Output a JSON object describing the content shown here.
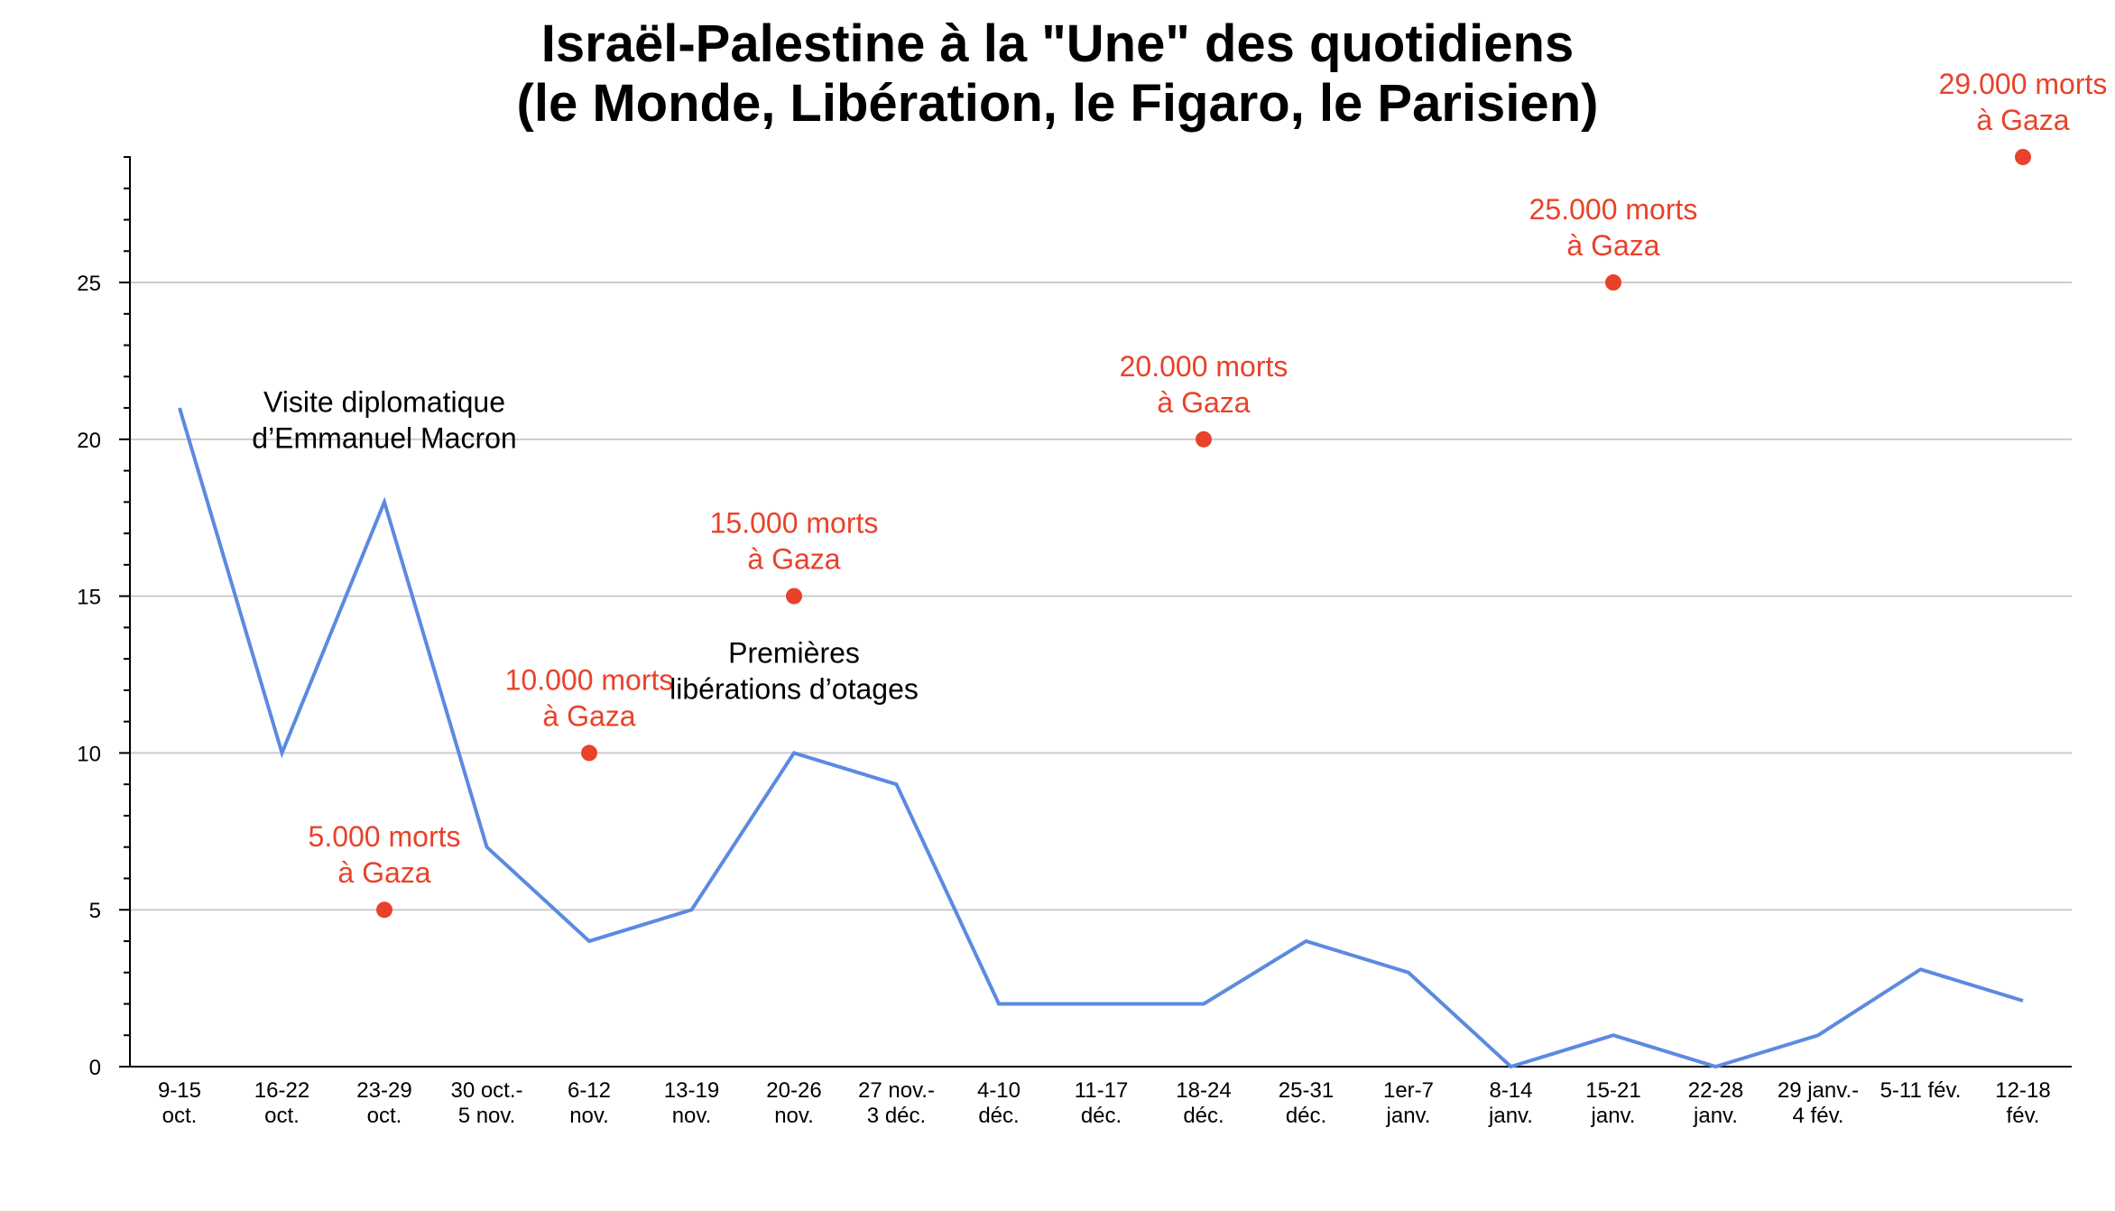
{
  "chart_data": {
    "type": "line",
    "title_lines": [
      "Israël-Palestine à la \"Une\" des quotidiens",
      "(le Monde, Libération, le Figaro, le Parisien)"
    ],
    "xlabel": "",
    "ylabel": "",
    "ylim": [
      0,
      29
    ],
    "y_ticks": [
      0,
      5,
      10,
      15,
      20,
      25
    ],
    "grid": true,
    "categories": [
      [
        "9-15",
        "oct."
      ],
      [
        "16-22",
        "oct."
      ],
      [
        "23-29",
        "oct."
      ],
      [
        "30 oct.-",
        "5 nov."
      ],
      [
        "6-12",
        "nov."
      ],
      [
        "13-19",
        "nov."
      ],
      [
        "20-26",
        "nov."
      ],
      [
        "27 nov.-",
        "3 déc."
      ],
      [
        "4-10",
        "déc."
      ],
      [
        "11-17",
        "déc."
      ],
      [
        "18-24",
        "déc."
      ],
      [
        "25-31",
        "déc."
      ],
      [
        "1er-7",
        "janv."
      ],
      [
        "8-14",
        "janv."
      ],
      [
        "15-21",
        "janv."
      ],
      [
        "22-28",
        "janv."
      ],
      [
        "29 janv.-",
        "4 fév."
      ],
      [
        "5-11 fév.",
        ""
      ],
      [
        "12-18",
        "fév."
      ]
    ],
    "series": [
      {
        "name": "",
        "color": "#5b8ae0",
        "values": [
          21,
          10,
          18,
          7,
          4,
          5,
          10,
          9,
          2,
          2,
          2,
          4,
          3,
          0,
          1,
          0,
          1,
          3.1,
          2.1
        ]
      }
    ],
    "markers": [
      {
        "x_index": 2,
        "y": 5,
        "label": [
          "5.000 morts",
          "à Gaza"
        ]
      },
      {
        "x_index": 4,
        "y": 10,
        "label": [
          "10.000 morts",
          "à Gaza"
        ]
      },
      {
        "x_index": 6,
        "y": 15,
        "label": [
          "15.000 morts",
          "à Gaza"
        ]
      },
      {
        "x_index": 10,
        "y": 20,
        "label": [
          "20.000 morts",
          "à Gaza"
        ]
      },
      {
        "x_index": 14,
        "y": 25,
        "label": [
          "25.000 morts",
          "à Gaza"
        ]
      },
      {
        "x_index": 18,
        "y": 29,
        "label": [
          "29.000 morts",
          "à Gaza"
        ]
      }
    ],
    "marker_color": "#e8422a",
    "annotations": [
      {
        "x_index": 2,
        "y": 18,
        "label": [
          "Visite diplomatique",
          "d’Emmanuel Macron"
        ]
      },
      {
        "x_index": 6,
        "y": 10,
        "label": [
          "Premières",
          "libérations d’otages"
        ]
      }
    ]
  }
}
